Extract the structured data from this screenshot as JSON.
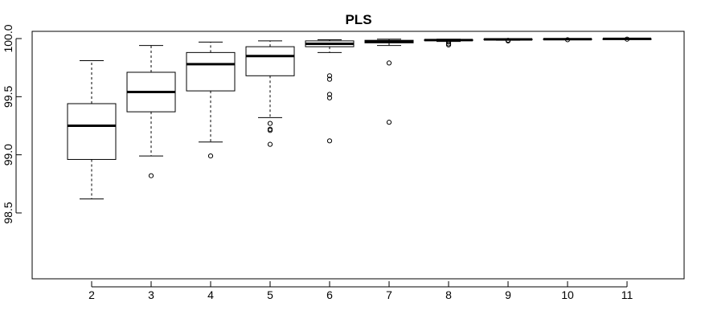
{
  "chart_data": {
    "type": "boxplot",
    "title": "PLS",
    "xlabel": "",
    "ylabel": "",
    "categories": [
      "2",
      "3",
      "4",
      "5",
      "6",
      "7",
      "8",
      "9",
      "10",
      "11"
    ],
    "ylim": [
      98.1,
      100.05
    ],
    "yticks": [
      98.5,
      99.0,
      99.5,
      100.0
    ],
    "ytick_labels": [
      "98.5",
      "99.0",
      "99.5",
      "100.0"
    ],
    "grid": false,
    "boxes": [
      {
        "category": "2",
        "whisker_low": 98.62,
        "q1": 98.96,
        "median": 99.25,
        "q3": 99.44,
        "whisker_high": 99.81,
        "outliers": []
      },
      {
        "category": "3",
        "whisker_low": 98.99,
        "q1": 99.37,
        "median": 99.54,
        "q3": 99.71,
        "whisker_high": 99.94,
        "outliers": [
          98.82
        ]
      },
      {
        "category": "4",
        "whisker_low": 99.11,
        "q1": 99.55,
        "median": 99.78,
        "q3": 99.88,
        "whisker_high": 99.97,
        "outliers": [
          98.99
        ]
      },
      {
        "category": "5",
        "whisker_low": 99.32,
        "q1": 99.68,
        "median": 99.85,
        "q3": 99.93,
        "whisker_high": 99.98,
        "outliers": [
          99.27,
          99.22,
          99.21,
          99.09
        ]
      },
      {
        "category": "6",
        "whisker_low": 99.88,
        "q1": 99.93,
        "median": 99.955,
        "q3": 99.98,
        "whisker_high": 99.99,
        "outliers": [
          99.68,
          99.65,
          99.52,
          99.49,
          99.12
        ]
      },
      {
        "category": "7",
        "whisker_low": 99.94,
        "q1": 99.963,
        "median": 99.975,
        "q3": 99.985,
        "whisker_high": 99.995,
        "outliers": [
          99.79,
          99.28
        ]
      },
      {
        "category": "8",
        "whisker_low": 99.975,
        "q1": 99.982,
        "median": 99.987,
        "q3": 99.991,
        "whisker_high": 99.995,
        "outliers": [
          99.97,
          99.955,
          99.945
        ]
      },
      {
        "category": "9",
        "whisker_low": 99.985,
        "q1": 99.99,
        "median": 99.993,
        "q3": 99.995,
        "whisker_high": 99.998,
        "outliers": [
          99.985,
          99.98
        ]
      },
      {
        "category": "10",
        "whisker_low": 99.99,
        "q1": 99.993,
        "median": 99.995,
        "q3": 99.997,
        "whisker_high": 99.999,
        "outliers": [
          99.99
        ]
      },
      {
        "category": "11",
        "whisker_low": 99.993,
        "q1": 99.996,
        "median": 99.997,
        "q3": 99.998,
        "whisker_high": 99.999,
        "outliers": [
          99.995
        ]
      }
    ]
  }
}
